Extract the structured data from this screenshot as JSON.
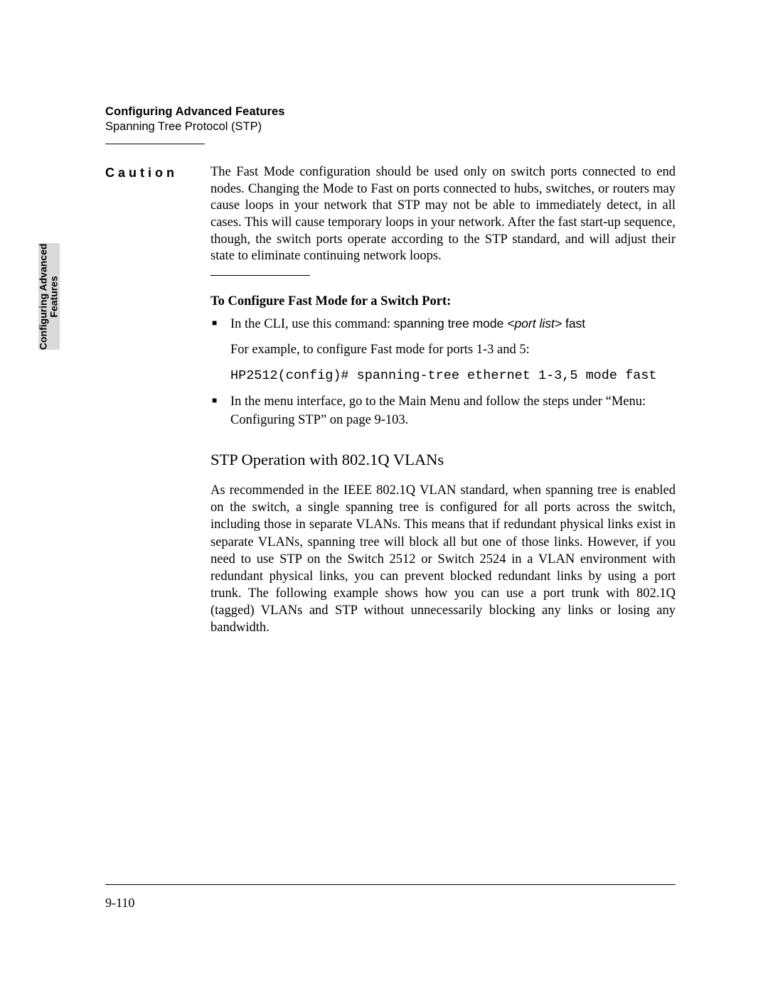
{
  "header": {
    "title": "Configuring Advanced Features",
    "subtitle": "Spanning Tree Protocol (STP)"
  },
  "sideTab": {
    "line1": "Configuring Advanced",
    "line2": "Features"
  },
  "caution": {
    "label": "Caution",
    "text": "The Fast Mode configuration should be used only on switch ports connected to end nodes. Changing the Mode to Fast on ports connected to hubs, switches, or routers may cause loops in your network that STP may not be able to immediately detect, in all cases. This will cause temporary loops in your network. After the fast start-up sequence, though, the switch ports operate according to the STP standard, and will adjust their state to eliminate continuing network loops."
  },
  "configure": {
    "heading": "To Configure Fast Mode for a Switch Port:",
    "bullet1_prefix": "In the CLI, use this command: ",
    "bullet1_cmd_a": "spanning tree mode ",
    "bullet1_cmd_b": "<port list>",
    "bullet1_cmd_c": " fast",
    "bullet1_example": "For example, to configure Fast mode for ports 1-3 and 5:",
    "bullet1_mono": "HP2512(config)# spanning-tree ethernet 1-3,5 mode fast",
    "bullet2": "In the menu interface, go to the Main Menu and follow the steps under “Menu: Configuring STP” on page 9-103."
  },
  "vlan": {
    "heading": "STP Operation with 802.1Q VLANs",
    "text": "As recommended in the IEEE 802.1Q VLAN standard, when spanning tree is enabled on the switch, a single spanning tree is configured for all ports across the switch, including those in separate VLANs. This means that if redundant physical links exist in separate VLANs, spanning tree will block all but one of those links. However, if you need to use STP on the Switch 2512 or Switch 2524 in a VLAN environment with redundant physical links, you can prevent blocked redundant links by using a port trunk. The following example shows how you can use a port trunk with 802.1Q (tagged) VLANs and STP without unnecessarily blocking any links or losing any bandwidth."
  },
  "pageNumber": "9-110"
}
